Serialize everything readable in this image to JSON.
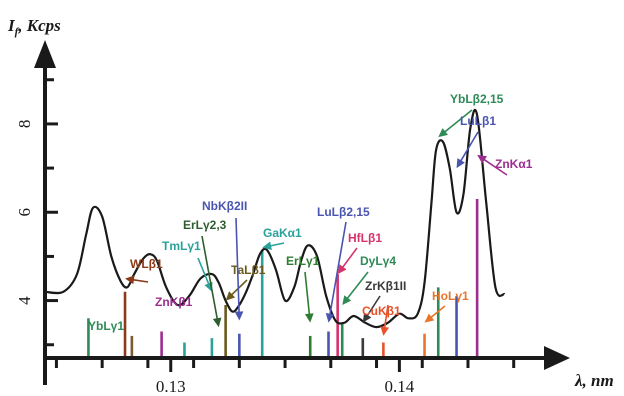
{
  "chart_data": {
    "type": "line",
    "title": "",
    "xlabel": "λ, nm",
    "ylabel": "I_f , Kcps",
    "ylabel_main": "I",
    "ylabel_sub": "f",
    "ylabel_rest": ", Kcps",
    "xlim": [
      0.1245,
      0.1465
    ],
    "ylim": [
      2.7,
      9.9
    ],
    "x_ticks": [
      {
        "value": 0.13,
        "label": "0.13"
      },
      {
        "value": 0.14,
        "label": "0.14"
      }
    ],
    "x_minor_ticks": [
      0.125,
      0.127,
      0.129,
      0.131,
      0.133,
      0.135,
      0.137,
      0.139,
      0.141,
      0.143,
      0.145
    ],
    "y_ticks": [
      {
        "value": 4,
        "label": "4"
      },
      {
        "value": 6,
        "label": "6"
      },
      {
        "value": 8,
        "label": "8"
      }
    ],
    "y_minor_ticks": [
      3,
      5,
      7,
      9
    ],
    "grid": false,
    "series": [
      {
        "color": "#1a1a1a",
        "x": [
          0.1245,
          0.1253,
          0.1259,
          0.1263,
          0.1266,
          0.127,
          0.1274,
          0.1278,
          0.1281,
          0.1284,
          0.1288,
          0.1291,
          0.1294,
          0.1298,
          0.1303,
          0.1308,
          0.1313,
          0.1318,
          0.1321,
          0.1324,
          0.1327,
          0.133,
          0.1333,
          0.1336,
          0.1339,
          0.1342,
          0.1346,
          0.135,
          0.1354,
          0.1357,
          0.136,
          0.1364,
          0.1368,
          0.1372,
          0.1376,
          0.138,
          0.1385,
          0.139,
          0.1395,
          0.14,
          0.1404,
          0.1408,
          0.1411,
          0.1414,
          0.1416,
          0.1419,
          0.1422,
          0.1425,
          0.1428,
          0.1431,
          0.1434,
          0.1438,
          0.1442,
          0.1446
        ],
        "y": [
          4.2,
          4.2,
          4.6,
          5.5,
          6.1,
          5.9,
          5.0,
          4.45,
          4.3,
          4.6,
          4.95,
          5.05,
          4.9,
          4.3,
          3.9,
          4.1,
          4.5,
          4.6,
          4.4,
          4.0,
          3.75,
          3.9,
          4.2,
          4.6,
          5.05,
          5.15,
          4.7,
          4.0,
          4.3,
          4.9,
          5.25,
          5.0,
          4.1,
          3.55,
          3.5,
          3.65,
          3.5,
          3.4,
          3.5,
          3.7,
          3.6,
          3.7,
          4.4,
          6.2,
          7.4,
          7.6,
          7.0,
          6.0,
          6.4,
          7.9,
          8.2,
          6.2,
          4.3,
          4.15
        ]
      }
    ],
    "lines": [
      {
        "label": "YbLγ1",
        "x": 0.1264,
        "y": 3.6,
        "color": "#2e8b57"
      },
      {
        "label": "WLβ1",
        "x": 0.128,
        "y": 4.2,
        "color": "#8b3a1a"
      },
      {
        "label": "ZnKβ1",
        "x": 0.1283,
        "y": 3.2,
        "color": "#7a5c30"
      },
      {
        "label": "ZnKβ1",
        "x": 0.1296,
        "y": 3.3,
        "color": "#9b2f8f"
      },
      {
        "label": "TmLγ1",
        "x": 0.1306,
        "y": 3.05,
        "color": "#2aa19a"
      },
      {
        "label": "ErLγ2,3",
        "x": 0.1318,
        "y": 3.15,
        "color": "#2aa19a"
      },
      {
        "label": "TaLβ1",
        "x": 0.1324,
        "y": 3.9,
        "color": "#6b5a1e"
      },
      {
        "label": "NbKβ2II",
        "x": 0.133,
        "y": 3.25,
        "color": "#4a55b0"
      },
      {
        "label": "GaKα1",
        "x": 0.134,
        "y": 5.15,
        "color": "#2aa19a"
      },
      {
        "label": "ErLγ1",
        "x": 0.1361,
        "y": 3.2,
        "color": "#2e7d32"
      },
      {
        "label": "LuLβ2,15",
        "x": 0.1369,
        "y": 3.3,
        "color": "#4a55b0"
      },
      {
        "label": "HfLβ1",
        "x": 0.1373,
        "y": 4.6,
        "color": "#d6336c"
      },
      {
        "label": "DyLγ4",
        "x": 0.1375,
        "y": 3.5,
        "color": "#2e8b57"
      },
      {
        "label": "ZrKβ1II",
        "x": 0.1384,
        "y": 3.15,
        "color": "#3a3a3a"
      },
      {
        "label": "CuKβ1",
        "x": 0.1393,
        "y": 3.05,
        "color": "#e8522a"
      },
      {
        "label": "HoLγ1",
        "x": 0.1411,
        "y": 3.25,
        "color": "#e8752a"
      },
      {
        "label": "YbLβ2,15",
        "x": 0.1417,
        "y": 4.3,
        "color": "#2e8b57"
      },
      {
        "label": "LuLβ1",
        "x": 0.1425,
        "y": 4.1,
        "color": "#4a55b0"
      },
      {
        "label": "ZnKα1",
        "x": 0.1434,
        "y": 6.3,
        "color": "#9b2f8f"
      }
    ],
    "annotations": [
      {
        "label": "YbLγ1",
        "color": "#2e8b57",
        "arrow": false
      },
      {
        "label": "WLβ1",
        "color": "#8b3a1a",
        "arrow": true,
        "target": [
          0.128,
          4.5
        ]
      },
      {
        "label": "ZnKβ1",
        "color": "#9b2f8f",
        "arrow": false
      },
      {
        "label": "TmLγ1",
        "color": "#2aa19a",
        "arrow": true,
        "target": [
          0.1318,
          4.2
        ]
      },
      {
        "label": "ErLγ2,3",
        "color": "#2e5e2e",
        "arrow": true,
        "target": [
          0.1321,
          3.4
        ]
      },
      {
        "label": "TaLβ1",
        "color": "#6b5a1e",
        "arrow": true,
        "target": [
          0.1324,
          4.0
        ]
      },
      {
        "label": "NbKβ2II",
        "color": "#4a55b0",
        "arrow": true,
        "target": [
          0.133,
          3.55
        ]
      },
      {
        "label": "GaKα1",
        "color": "#2aa19a",
        "arrow": true,
        "target": [
          0.134,
          5.2
        ]
      },
      {
        "label": "ErLγ1",
        "color": "#2e7d32",
        "arrow": true,
        "target": [
          0.1361,
          3.5
        ]
      },
      {
        "label": "LuLβ2,15",
        "color": "#4a55b0",
        "arrow": true,
        "target": [
          0.1369,
          3.5
        ]
      },
      {
        "label": "HfLβ1",
        "color": "#d6336c",
        "arrow": true,
        "target": [
          0.1373,
          4.6
        ]
      },
      {
        "label": "DyLγ4",
        "color": "#2e8b57",
        "arrow": true,
        "target": [
          0.1375,
          3.9
        ]
      },
      {
        "label": "ZrKβ1II",
        "color": "#3a3a3a",
        "arrow": true,
        "target": [
          0.1384,
          3.5
        ]
      },
      {
        "label": "CuKβ1",
        "color": "#e8522a",
        "arrow": true,
        "target": [
          0.1393,
          3.2
        ]
      },
      {
        "label": "HoLγ1",
        "color": "#e8752a",
        "arrow": true,
        "target": [
          0.1411,
          3.5
        ]
      },
      {
        "label": "YbLβ2,15",
        "color": "#2e8b57",
        "arrow": true,
        "target": [
          0.1417,
          7.7
        ]
      },
      {
        "label": "LuLβ1",
        "color": "#4a55b0",
        "arrow": true,
        "target": [
          0.1425,
          7.0
        ]
      },
      {
        "label": "ZnKα1",
        "color": "#9b2f8f",
        "arrow": true,
        "target": [
          0.1434,
          7.3
        ]
      }
    ]
  }
}
